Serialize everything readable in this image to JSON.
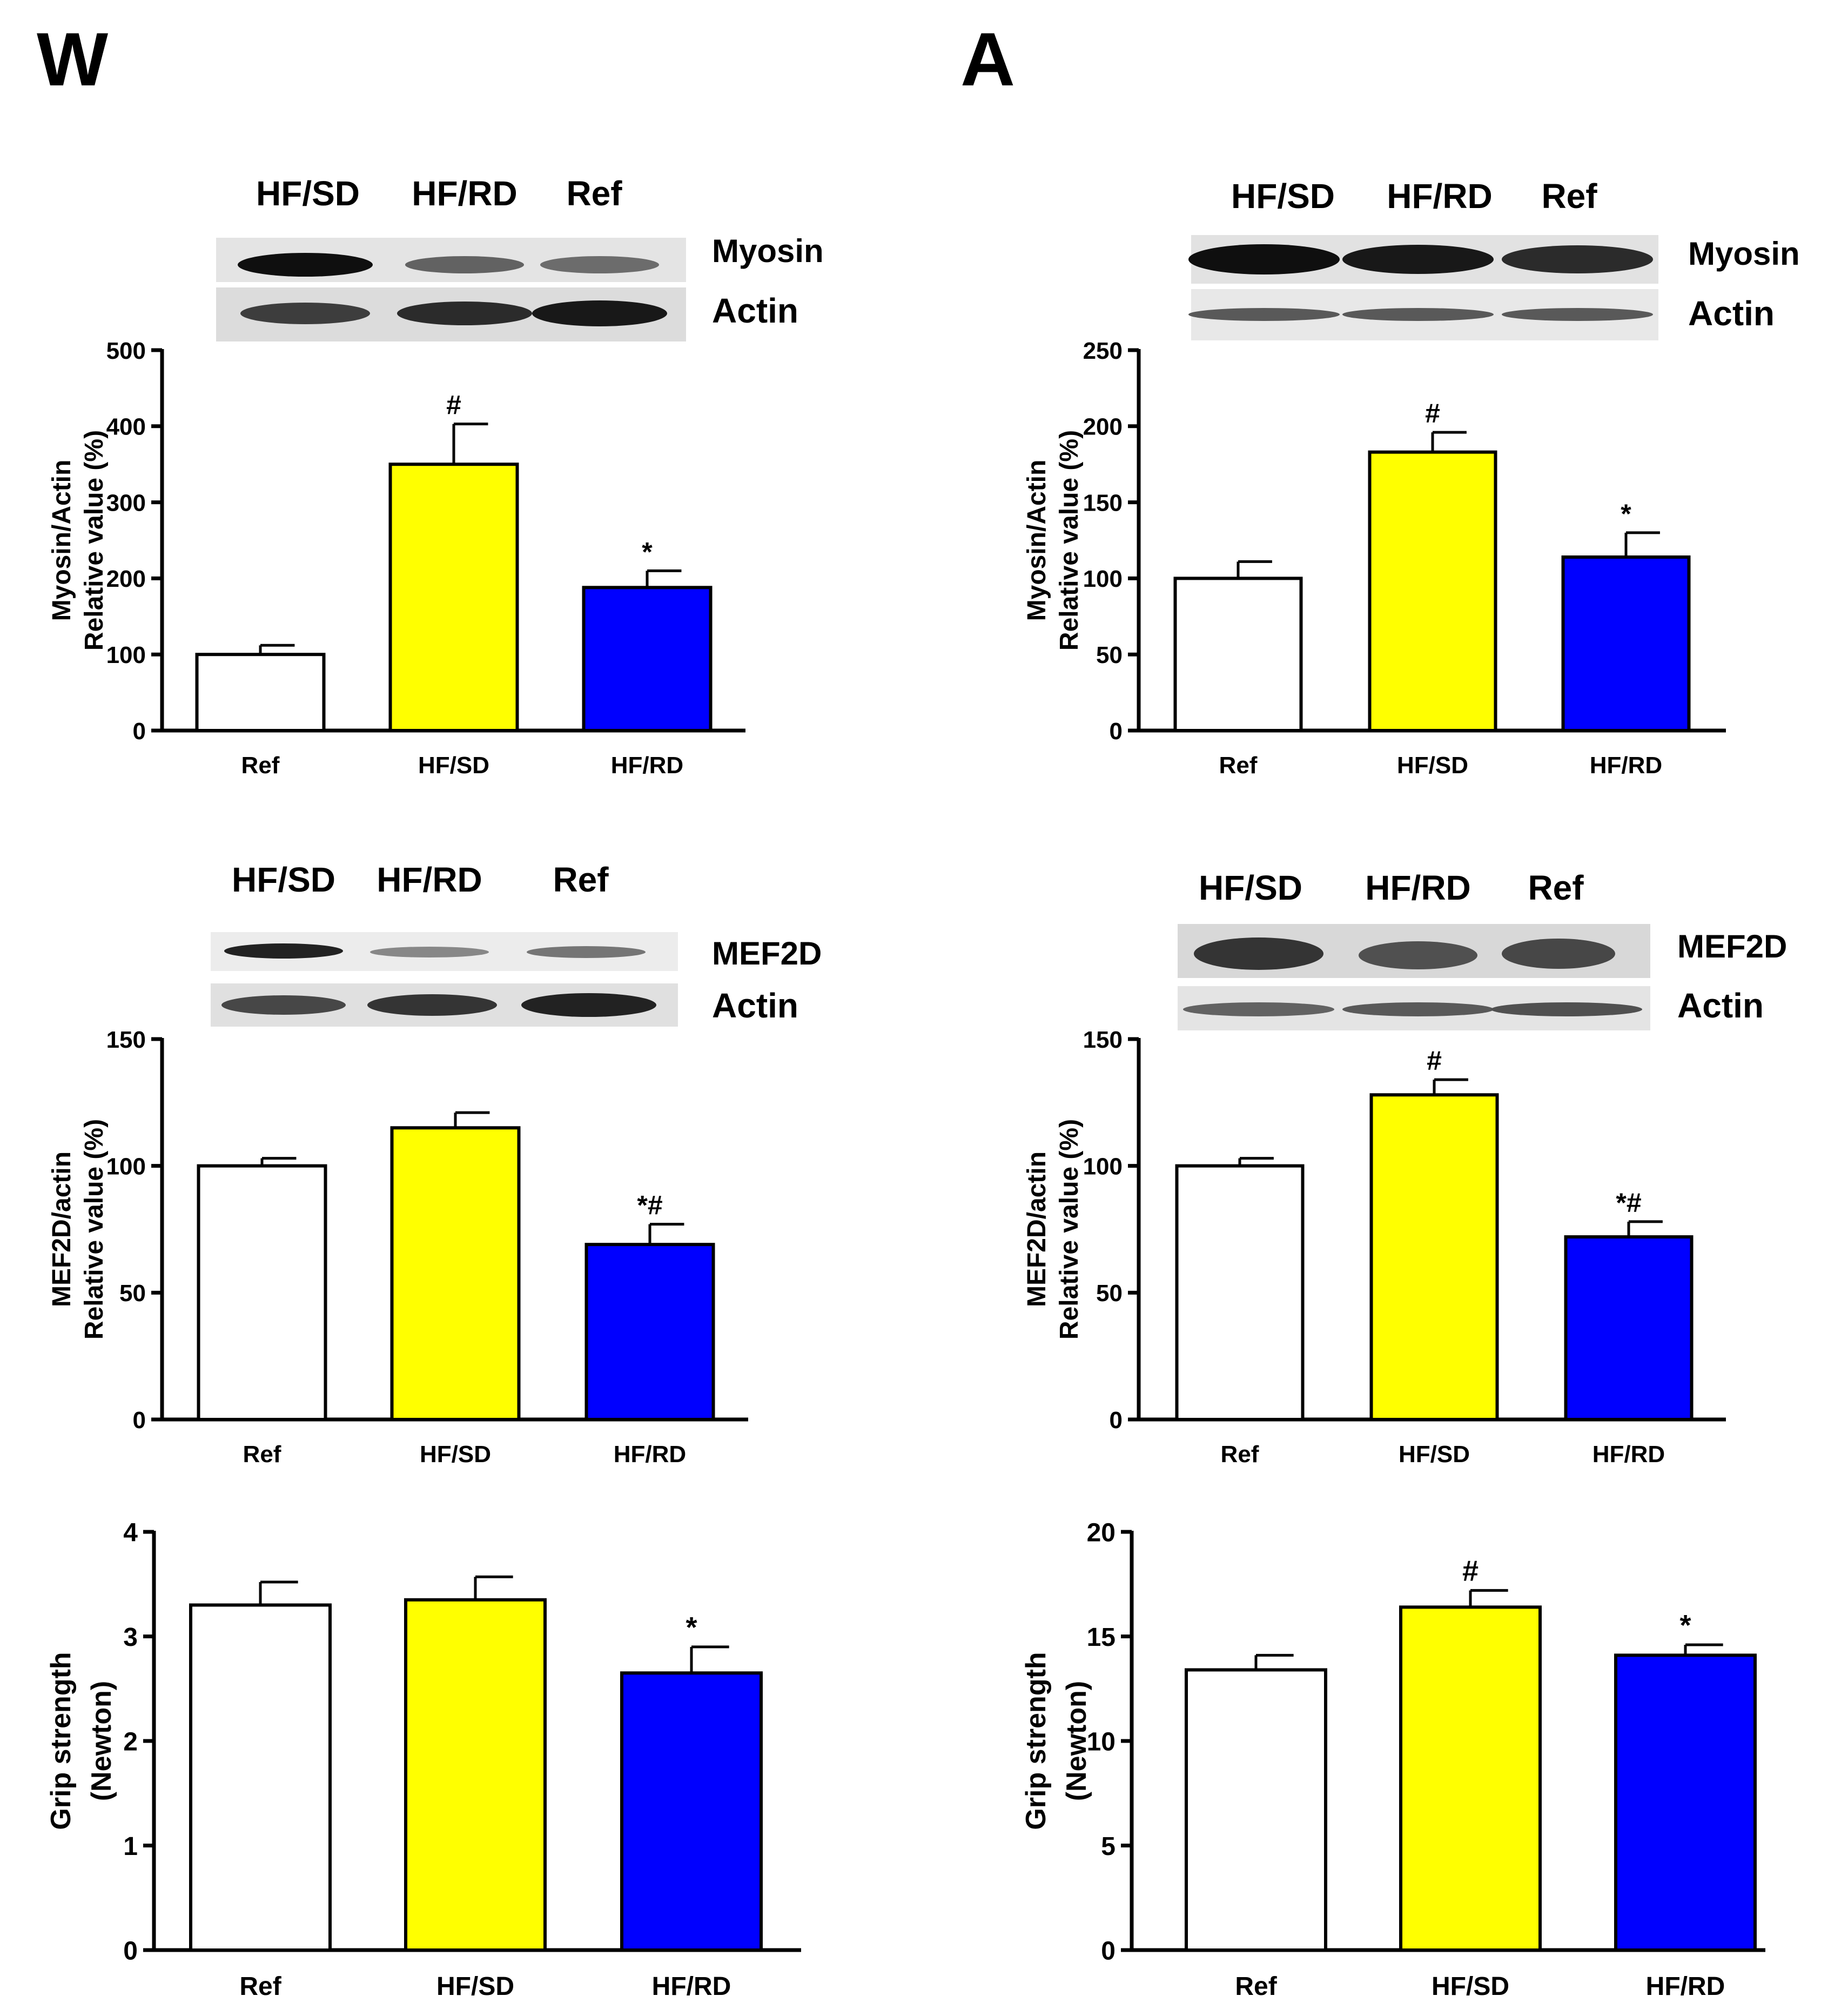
{
  "panels": [
    {
      "letter": "W",
      "blots": [
        {
          "lanes": [
            "HF/SD",
            "HF/RD",
            "Ref"
          ],
          "bands": [
            "Myosin",
            "Actin"
          ],
          "intensity": [
            [
              1.0,
              0.55,
              0.5
            ],
            [
              0.75,
              0.85,
              0.95
            ]
          ]
        },
        {
          "lanes": [
            "HF/SD",
            "HF/RD",
            "Ref"
          ],
          "bands": [
            "MEF2D",
            "Actin"
          ],
          "intensity": [
            [
              0.9,
              0.35,
              0.45
            ],
            [
              0.7,
              0.8,
              0.9
            ]
          ]
        }
      ]
    },
    {
      "letter": "A",
      "blots": [
        {
          "lanes": [
            "HF/SD",
            "HF/RD",
            "Ref"
          ],
          "bands": [
            "Myosin",
            "Actin"
          ],
          "intensity": [
            [
              1.0,
              0.95,
              0.85
            ],
            [
              0.6,
              0.6,
              0.6
            ]
          ]
        },
        {
          "lanes": [
            "HF/SD",
            "HF/RD",
            "Ref"
          ],
          "bands": [
            "MEF2D",
            "Actin"
          ],
          "intensity": [
            [
              0.8,
              0.65,
              0.7
            ],
            [
              0.55,
              0.6,
              0.65
            ]
          ]
        }
      ]
    }
  ],
  "colors": {
    "Ref": "#ffffff",
    "HF/SD": "#ffff00",
    "HF/RD": "#0000ff"
  },
  "chart_data": [
    {
      "id": "W-myosin",
      "type": "bar",
      "categories": [
        "Ref",
        "HF/SD",
        "HF/RD"
      ],
      "values": [
        100,
        350,
        188
      ],
      "errors": [
        12,
        53,
        22
      ],
      "annotations": [
        "",
        "#",
        "*"
      ],
      "ylabel": [
        "Myosin/Actin",
        "Relative value (%)"
      ],
      "ylim": [
        0,
        500
      ],
      "ticks": [
        0,
        100,
        200,
        300,
        400,
        500
      ]
    },
    {
      "id": "W-mef2d",
      "type": "bar",
      "categories": [
        "Ref",
        "HF/SD",
        "HF/RD"
      ],
      "values": [
        100,
        115,
        69
      ],
      "errors": [
        3,
        6,
        8
      ],
      "annotations": [
        "",
        "",
        "*#"
      ],
      "ylabel": [
        "MEF2D/actin",
        "Relative value (%)"
      ],
      "ylim": [
        0,
        150
      ],
      "ticks": [
        0,
        50,
        100,
        150
      ]
    },
    {
      "id": "W-grip",
      "type": "bar",
      "categories": [
        "Ref",
        "HF/SD",
        "HF/RD"
      ],
      "values": [
        3.3,
        3.35,
        2.65
      ],
      "errors": [
        0.22,
        0.22,
        0.25
      ],
      "annotations": [
        "",
        "",
        "*"
      ],
      "ylabel": [
        "Grip strength",
        "(Newton)"
      ],
      "ylim": [
        0,
        4
      ],
      "ticks": [
        0,
        1,
        2,
        3,
        4
      ]
    },
    {
      "id": "A-myosin",
      "type": "bar",
      "categories": [
        "Ref",
        "HF/SD",
        "HF/RD"
      ],
      "values": [
        100,
        183,
        114
      ],
      "errors": [
        11,
        13,
        16
      ],
      "annotations": [
        "",
        "#",
        "*"
      ],
      "ylabel": [
        "Myosin/Actin",
        "Relative value (%)"
      ],
      "ylim": [
        0,
        250
      ],
      "ticks": [
        0,
        50,
        100,
        150,
        200,
        250
      ]
    },
    {
      "id": "A-mef2d",
      "type": "bar",
      "categories": [
        "Ref",
        "HF/SD",
        "HF/RD"
      ],
      "values": [
        100,
        128,
        72
      ],
      "errors": [
        3,
        6,
        6
      ],
      "annotations": [
        "",
        "#",
        "*#"
      ],
      "ylabel": [
        "MEF2D/actin",
        "Relative value (%)"
      ],
      "ylim": [
        0,
        150
      ],
      "ticks": [
        0,
        50,
        100,
        150
      ]
    },
    {
      "id": "A-grip",
      "type": "bar",
      "categories": [
        "Ref",
        "HF/SD",
        "HF/RD"
      ],
      "values": [
        13.4,
        16.4,
        14.1
      ],
      "errors": [
        0.7,
        0.8,
        0.5
      ],
      "annotations": [
        "",
        "#",
        "*"
      ],
      "ylabel": [
        "Grip strength",
        "(Newton)"
      ],
      "ylim": [
        0,
        20
      ],
      "ticks": [
        0,
        5,
        10,
        15,
        20
      ]
    }
  ]
}
